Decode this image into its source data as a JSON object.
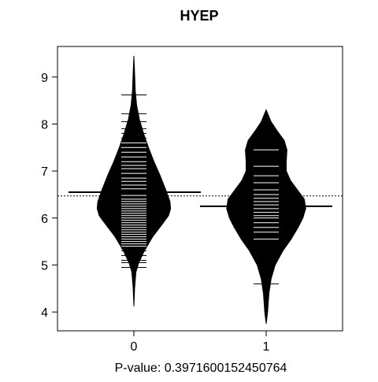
{
  "chart_data": {
    "type": "beanplot",
    "title": "HYEP",
    "xlabel": "P-value: 0.3971600152450764",
    "ylabel": "",
    "categories": [
      "0",
      "1"
    ],
    "ylim": [
      3.6,
      9.65
    ],
    "yticks": [
      4,
      5,
      6,
      7,
      8,
      9
    ],
    "overall_mean": 6.47,
    "grid": false,
    "legend": "none",
    "colors": {
      "bean": "#000000",
      "lines": "#ffffff",
      "background": "#ffffff"
    },
    "beans": [
      {
        "category": "0",
        "mean": 6.55,
        "density": [
          [
            4.12,
            0.0
          ],
          [
            4.5,
            0.01
          ],
          [
            4.85,
            0.03
          ],
          [
            5.05,
            0.07
          ],
          [
            5.3,
            0.15
          ],
          [
            5.6,
            0.27
          ],
          [
            5.85,
            0.4
          ],
          [
            6.05,
            0.5
          ],
          [
            6.2,
            0.53
          ],
          [
            6.35,
            0.52
          ],
          [
            6.6,
            0.46
          ],
          [
            6.9,
            0.38
          ],
          [
            7.2,
            0.29
          ],
          [
            7.5,
            0.21
          ],
          [
            7.8,
            0.14
          ],
          [
            8.1,
            0.08
          ],
          [
            8.4,
            0.04
          ],
          [
            8.7,
            0.02
          ],
          [
            9.1,
            0.01
          ],
          [
            9.45,
            0.0
          ]
        ],
        "observations": [
          4.95,
          5.05,
          5.1,
          5.2,
          5.3,
          5.35,
          5.4,
          5.45,
          5.5,
          5.55,
          5.6,
          5.65,
          5.7,
          5.75,
          5.8,
          5.85,
          5.9,
          5.95,
          6.0,
          6.05,
          6.1,
          6.15,
          6.2,
          6.25,
          6.3,
          6.35,
          6.4,
          6.48,
          6.55,
          6.62,
          6.7,
          6.78,
          6.85,
          6.95,
          7.05,
          7.12,
          7.2,
          7.3,
          7.4,
          7.5,
          7.6,
          7.7,
          7.8,
          7.9,
          8.05,
          8.22,
          8.62
        ]
      },
      {
        "category": "1",
        "mean": 6.25,
        "density": [
          [
            3.75,
            0.0
          ],
          [
            4.0,
            0.02
          ],
          [
            4.4,
            0.04
          ],
          [
            4.7,
            0.07
          ],
          [
            5.0,
            0.13
          ],
          [
            5.3,
            0.24
          ],
          [
            5.55,
            0.36
          ],
          [
            5.8,
            0.46
          ],
          [
            6.0,
            0.53
          ],
          [
            6.2,
            0.57
          ],
          [
            6.4,
            0.55
          ],
          [
            6.6,
            0.45
          ],
          [
            6.8,
            0.35
          ],
          [
            7.0,
            0.29
          ],
          [
            7.2,
            0.29
          ],
          [
            7.45,
            0.3
          ],
          [
            7.65,
            0.26
          ],
          [
            7.85,
            0.16
          ],
          [
            8.05,
            0.07
          ],
          [
            8.3,
            0.0
          ]
        ],
        "observations": [
          4.6,
          5.55,
          5.7,
          5.8,
          5.9,
          6.0,
          6.05,
          6.12,
          6.2,
          6.28,
          6.35,
          6.42,
          6.5,
          6.6,
          6.75,
          6.9,
          7.1,
          7.45
        ]
      }
    ]
  }
}
